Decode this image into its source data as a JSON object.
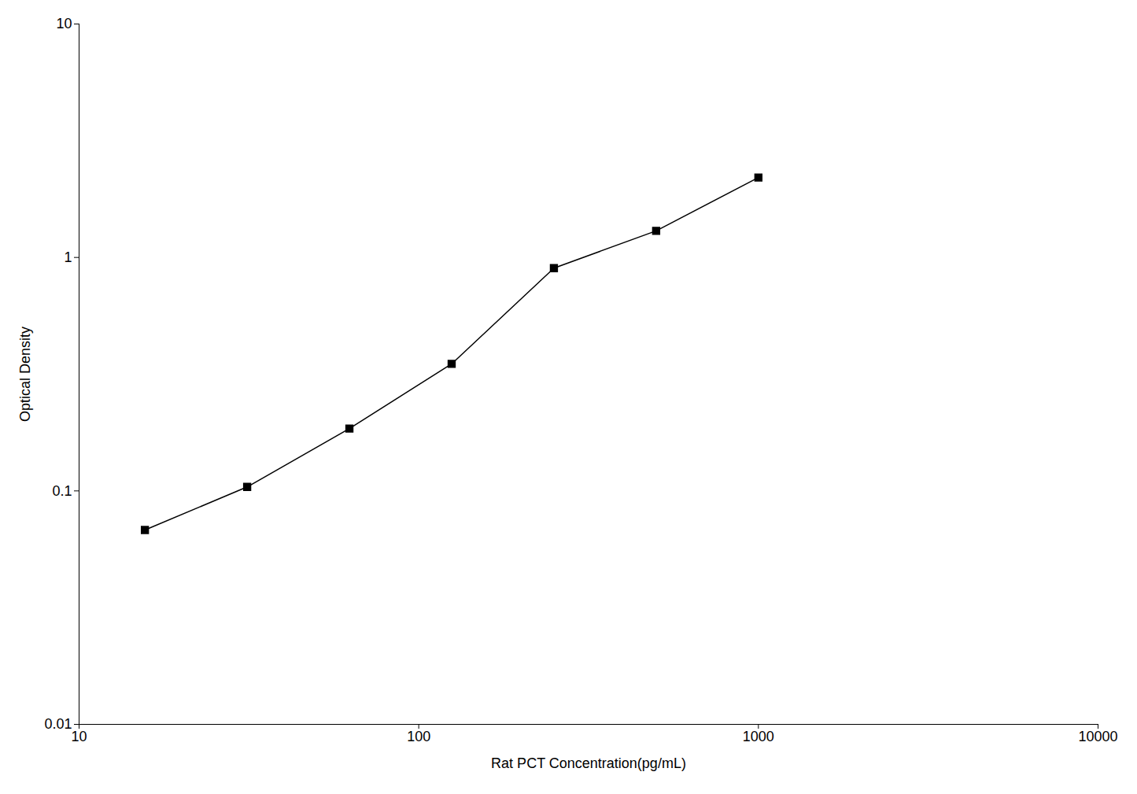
{
  "chart_data": {
    "type": "line",
    "x": [
      15.625,
      31.25,
      62.5,
      125,
      250,
      500,
      1000
    ],
    "values": [
      0.068,
      0.104,
      0.185,
      0.35,
      0.9,
      1.3,
      2.2
    ],
    "xlabel": "Rat PCT Concentration(pg/mL)",
    "ylabel": "Optical Density",
    "xlim": [
      10,
      10000
    ],
    "ylim": [
      0.01,
      10
    ],
    "xticks": [
      10,
      100,
      1000,
      10000
    ],
    "yticks": [
      0.01,
      0.1,
      1,
      10
    ],
    "log": true,
    "color": "#000000",
    "marker": "square",
    "grid": false
  }
}
